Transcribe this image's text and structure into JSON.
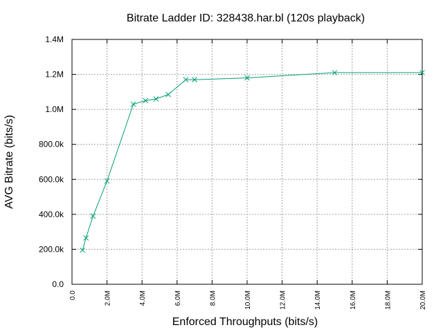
{
  "chart_data": {
    "type": "line",
    "title": "Bitrate Ladder ID: 328438.har.bl (120s playback)",
    "xlabel": "Enforced Throughputs (bits/s)",
    "ylabel": "AVG Bitrate (bits/s)",
    "xlim": [
      0,
      20000000
    ],
    "ylim": [
      0,
      1400000
    ],
    "x_ticks": [
      {
        "value": 0,
        "label": "0.0"
      },
      {
        "value": 2000000,
        "label": "2.0M"
      },
      {
        "value": 4000000,
        "label": "4.0M"
      },
      {
        "value": 6000000,
        "label": "6.0M"
      },
      {
        "value": 8000000,
        "label": "8.0M"
      },
      {
        "value": 10000000,
        "label": "10.0M"
      },
      {
        "value": 12000000,
        "label": "12.0M"
      },
      {
        "value": 14000000,
        "label": "14.0M"
      },
      {
        "value": 16000000,
        "label": "16.0M"
      },
      {
        "value": 18000000,
        "label": "18.0M"
      },
      {
        "value": 20000000,
        "label": "20.0M"
      }
    ],
    "y_ticks": [
      {
        "value": 0,
        "label": "0.0"
      },
      {
        "value": 200000,
        "label": "200.0k"
      },
      {
        "value": 400000,
        "label": "400.0k"
      },
      {
        "value": 600000,
        "label": "600.0k"
      },
      {
        "value": 800000,
        "label": "800.0k"
      },
      {
        "value": 1000000,
        "label": "1.0M"
      },
      {
        "value": 1200000,
        "label": "1.2M"
      },
      {
        "value": 1400000,
        "label": "1.4M"
      }
    ],
    "grid": true,
    "line_color": "#009e73",
    "marker": "x",
    "series": [
      {
        "x": [
          600000,
          800000,
          1200000,
          2000000,
          3500000,
          4200000,
          4800000,
          5500000,
          6500000,
          7000000,
          10000000,
          15000000,
          20000000
        ],
        "y": [
          195000,
          265000,
          390000,
          590000,
          1030000,
          1050000,
          1060000,
          1085000,
          1170000,
          1170000,
          1180000,
          1210000,
          1210000
        ]
      }
    ]
  }
}
